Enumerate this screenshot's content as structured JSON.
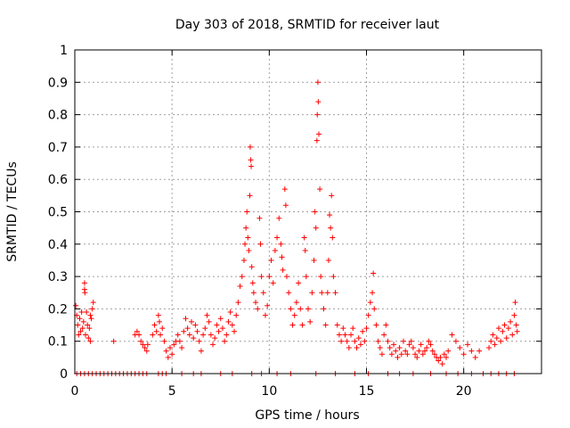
{
  "chart_data": {
    "type": "scatter",
    "title": "Day 303 of 2018, SRMTID for receiver laut",
    "xlabel": "GPS time / hours",
    "ylabel": "SRMTID / TECUs",
    "xlim": [
      0,
      24
    ],
    "ylim": [
      0,
      1
    ],
    "xticks": [
      "0",
      "5",
      "10",
      "15",
      "20"
    ],
    "yticks": [
      "0",
      "0.1",
      "0.2",
      "0.3",
      "0.4",
      "0.5",
      "0.6",
      "0.7",
      "0.8",
      "0.9",
      "1"
    ],
    "grid": true,
    "marker": "plus",
    "color": "#ff0000",
    "series": [
      {
        "name": "SRMTID",
        "points": [
          [
            0.05,
            0.21
          ],
          [
            0.1,
            0.18
          ],
          [
            0.15,
            0.15
          ],
          [
            0.2,
            0.12
          ],
          [
            0.25,
            0.17
          ],
          [
            0.3,
            0.13
          ],
          [
            0.35,
            0.19
          ],
          [
            0.4,
            0.14
          ],
          [
            0.45,
            0.16
          ],
          [
            0.5,
            0.28
          ],
          [
            0.5,
            0.26
          ],
          [
            0.52,
            0.25
          ],
          [
            0.55,
            0.12
          ],
          [
            0.6,
            0.19
          ],
          [
            0.65,
            0.15
          ],
          [
            0.7,
            0.11
          ],
          [
            0.75,
            0.14
          ],
          [
            0.8,
            0.18
          ],
          [
            0.85,
            0.17
          ],
          [
            0.9,
            0.2
          ],
          [
            0.95,
            0.22
          ],
          [
            0.8,
            0.1
          ],
          [
            2.0,
            0.1
          ],
          [
            3.1,
            0.12
          ],
          [
            3.2,
            0.13
          ],
          [
            3.3,
            0.12
          ],
          [
            3.4,
            0.1
          ],
          [
            3.5,
            0.09
          ],
          [
            3.6,
            0.08
          ],
          [
            3.7,
            0.07
          ],
          [
            3.75,
            0.09
          ],
          [
            4.0,
            0.12
          ],
          [
            4.1,
            0.15
          ],
          [
            4.2,
            0.13
          ],
          [
            4.3,
            0.18
          ],
          [
            4.35,
            0.16
          ],
          [
            4.4,
            0.12
          ],
          [
            4.5,
            0.14
          ],
          [
            4.6,
            0.1
          ],
          [
            4.7,
            0.07
          ],
          [
            4.8,
            0.05
          ],
          [
            4.9,
            0.08
          ],
          [
            5.0,
            0.06
          ],
          [
            5.1,
            0.09
          ],
          [
            5.2,
            0.1
          ],
          [
            5.3,
            0.12
          ],
          [
            5.4,
            0.1
          ],
          [
            5.5,
            0.08
          ],
          [
            5.6,
            0.13
          ],
          [
            5.7,
            0.17
          ],
          [
            5.8,
            0.14
          ],
          [
            5.9,
            0.12
          ],
          [
            6.0,
            0.16
          ],
          [
            6.1,
            0.11
          ],
          [
            6.2,
            0.15
          ],
          [
            6.3,
            0.13
          ],
          [
            6.4,
            0.1
          ],
          [
            6.5,
            0.07
          ],
          [
            6.6,
            0.12
          ],
          [
            6.7,
            0.14
          ],
          [
            6.8,
            0.18
          ],
          [
            6.9,
            0.16
          ],
          [
            7.0,
            0.12
          ],
          [
            7.1,
            0.09
          ],
          [
            7.2,
            0.11
          ],
          [
            7.3,
            0.15
          ],
          [
            7.4,
            0.13
          ],
          [
            7.5,
            0.17
          ],
          [
            7.6,
            0.14
          ],
          [
            7.7,
            0.1
          ],
          [
            7.8,
            0.12
          ],
          [
            7.9,
            0.16
          ],
          [
            8.0,
            0.19
          ],
          [
            8.1,
            0.15
          ],
          [
            8.2,
            0.13
          ],
          [
            8.3,
            0.18
          ],
          [
            8.4,
            0.22
          ],
          [
            8.5,
            0.27
          ],
          [
            8.6,
            0.3
          ],
          [
            8.7,
            0.35
          ],
          [
            8.75,
            0.4
          ],
          [
            8.8,
            0.45
          ],
          [
            8.85,
            0.5
          ],
          [
            8.9,
            0.42
          ],
          [
            8.95,
            0.38
          ],
          [
            9.0,
            0.55
          ],
          [
            9.02,
            0.7
          ],
          [
            9.05,
            0.66
          ],
          [
            9.07,
            0.64
          ],
          [
            9.1,
            0.33
          ],
          [
            9.15,
            0.28
          ],
          [
            9.2,
            0.25
          ],
          [
            9.3,
            0.22
          ],
          [
            9.4,
            0.2
          ],
          [
            9.5,
            0.48
          ],
          [
            9.55,
            0.4
          ],
          [
            9.6,
            0.3
          ],
          [
            9.7,
            0.25
          ],
          [
            9.8,
            0.18
          ],
          [
            9.9,
            0.21
          ],
          [
            10.0,
            0.3
          ],
          [
            10.1,
            0.35
          ],
          [
            10.2,
            0.28
          ],
          [
            10.3,
            0.38
          ],
          [
            10.4,
            0.42
          ],
          [
            10.5,
            0.48
          ],
          [
            10.6,
            0.4
          ],
          [
            10.65,
            0.36
          ],
          [
            10.7,
            0.32
          ],
          [
            10.8,
            0.57
          ],
          [
            10.85,
            0.52
          ],
          [
            10.9,
            0.3
          ],
          [
            11.0,
            0.25
          ],
          [
            11.1,
            0.2
          ],
          [
            11.2,
            0.15
          ],
          [
            11.3,
            0.18
          ],
          [
            11.4,
            0.22
          ],
          [
            11.5,
            0.28
          ],
          [
            11.6,
            0.2
          ],
          [
            11.7,
            0.15
          ],
          [
            11.8,
            0.42
          ],
          [
            11.85,
            0.38
          ],
          [
            11.9,
            0.3
          ],
          [
            12.0,
            0.2
          ],
          [
            12.1,
            0.16
          ],
          [
            12.2,
            0.25
          ],
          [
            12.3,
            0.35
          ],
          [
            12.35,
            0.5
          ],
          [
            12.4,
            0.45
          ],
          [
            12.45,
            0.72
          ],
          [
            12.47,
            0.8
          ],
          [
            12.5,
            0.9
          ],
          [
            12.52,
            0.84
          ],
          [
            12.55,
            0.74
          ],
          [
            12.6,
            0.57
          ],
          [
            12.65,
            0.3
          ],
          [
            12.7,
            0.25
          ],
          [
            12.8,
            0.2
          ],
          [
            12.9,
            0.15
          ],
          [
            13.0,
            0.25
          ],
          [
            13.05,
            0.35
          ],
          [
            13.1,
            0.49
          ],
          [
            13.15,
            0.45
          ],
          [
            13.2,
            0.55
          ],
          [
            13.25,
            0.42
          ],
          [
            13.3,
            0.3
          ],
          [
            13.4,
            0.25
          ],
          [
            13.5,
            0.15
          ],
          [
            13.6,
            0.12
          ],
          [
            13.7,
            0.1
          ],
          [
            13.8,
            0.14
          ],
          [
            13.9,
            0.12
          ],
          [
            14.0,
            0.1
          ],
          [
            14.1,
            0.08
          ],
          [
            14.2,
            0.12
          ],
          [
            14.3,
            0.14
          ],
          [
            14.4,
            0.1
          ],
          [
            14.5,
            0.08
          ],
          [
            14.6,
            0.11
          ],
          [
            14.7,
            0.09
          ],
          [
            14.8,
            0.13
          ],
          [
            14.9,
            0.1
          ],
          [
            15.0,
            0.14
          ],
          [
            15.1,
            0.18
          ],
          [
            15.2,
            0.22
          ],
          [
            15.3,
            0.25
          ],
          [
            15.35,
            0.31
          ],
          [
            15.4,
            0.2
          ],
          [
            15.5,
            0.15
          ],
          [
            15.6,
            0.1
          ],
          [
            15.7,
            0.08
          ],
          [
            15.8,
            0.06
          ],
          [
            15.9,
            0.12
          ],
          [
            16.0,
            0.15
          ],
          [
            16.1,
            0.1
          ],
          [
            16.2,
            0.08
          ],
          [
            16.3,
            0.06
          ],
          [
            16.4,
            0.09
          ],
          [
            16.5,
            0.07
          ],
          [
            16.6,
            0.05
          ],
          [
            16.7,
            0.08
          ],
          [
            16.8,
            0.06
          ],
          [
            16.9,
            0.1
          ],
          [
            17.0,
            0.07
          ],
          [
            17.1,
            0.06
          ],
          [
            17.2,
            0.09
          ],
          [
            17.3,
            0.1
          ],
          [
            17.4,
            0.08
          ],
          [
            17.5,
            0.06
          ],
          [
            17.6,
            0.05
          ],
          [
            17.7,
            0.07
          ],
          [
            17.8,
            0.09
          ],
          [
            17.9,
            0.06
          ],
          [
            18.0,
            0.07
          ],
          [
            18.1,
            0.08
          ],
          [
            18.2,
            0.1
          ],
          [
            18.3,
            0.09
          ],
          [
            18.4,
            0.07
          ],
          [
            18.5,
            0.06
          ],
          [
            18.6,
            0.05
          ],
          [
            18.7,
            0.04
          ],
          [
            18.8,
            0.05
          ],
          [
            18.9,
            0.03
          ],
          [
            19.0,
            0.06
          ],
          [
            19.1,
            0.05
          ],
          [
            19.2,
            0.07
          ],
          [
            19.4,
            0.12
          ],
          [
            19.6,
            0.1
          ],
          [
            19.8,
            0.08
          ],
          [
            20.0,
            0.06
          ],
          [
            20.2,
            0.09
          ],
          [
            20.4,
            0.07
          ],
          [
            20.6,
            0.05
          ],
          [
            20.8,
            0.07
          ],
          [
            21.3,
            0.08
          ],
          [
            21.4,
            0.1
          ],
          [
            21.5,
            0.12
          ],
          [
            21.6,
            0.09
          ],
          [
            21.7,
            0.11
          ],
          [
            21.8,
            0.14
          ],
          [
            21.9,
            0.1
          ],
          [
            22.0,
            0.13
          ],
          [
            22.1,
            0.15
          ],
          [
            22.2,
            0.11
          ],
          [
            22.3,
            0.14
          ],
          [
            22.4,
            0.16
          ],
          [
            22.5,
            0.12
          ],
          [
            22.6,
            0.18
          ],
          [
            22.65,
            0.22
          ],
          [
            22.7,
            0.15
          ],
          [
            22.75,
            0.13
          ],
          [
            0.1,
            0
          ],
          [
            0.3,
            0
          ],
          [
            0.5,
            0
          ],
          [
            0.7,
            0
          ],
          [
            0.9,
            0
          ],
          [
            1.1,
            0
          ],
          [
            1.3,
            0
          ],
          [
            1.5,
            0
          ],
          [
            1.7,
            0
          ],
          [
            1.9,
            0
          ],
          [
            2.1,
            0
          ],
          [
            2.3,
            0
          ],
          [
            2.5,
            0
          ],
          [
            2.7,
            0
          ],
          [
            2.9,
            0
          ],
          [
            3.1,
            0
          ],
          [
            3.3,
            0
          ],
          [
            3.5,
            0
          ],
          [
            3.7,
            0
          ],
          [
            4.3,
            0
          ],
          [
            4.5,
            0
          ],
          [
            4.7,
            0
          ],
          [
            5.5,
            0
          ],
          [
            6.1,
            0
          ],
          [
            6.5,
            0
          ],
          [
            7.5,
            0
          ],
          [
            8.1,
            0
          ],
          [
            9.1,
            0
          ],
          [
            9.6,
            0
          ],
          [
            10.4,
            0
          ],
          [
            11.1,
            0
          ],
          [
            12.4,
            0
          ],
          [
            13.4,
            0
          ],
          [
            14.4,
            0
          ],
          [
            15.1,
            0
          ],
          [
            16.1,
            0
          ],
          [
            16.7,
            0
          ],
          [
            17.4,
            0
          ],
          [
            18.3,
            0
          ],
          [
            19.1,
            0
          ],
          [
            19.7,
            0
          ],
          [
            20.4,
            0
          ],
          [
            21.0,
            0
          ],
          [
            21.4,
            0
          ],
          [
            21.8,
            0
          ],
          [
            22.2,
            0
          ],
          [
            22.6,
            0
          ]
        ]
      }
    ]
  }
}
